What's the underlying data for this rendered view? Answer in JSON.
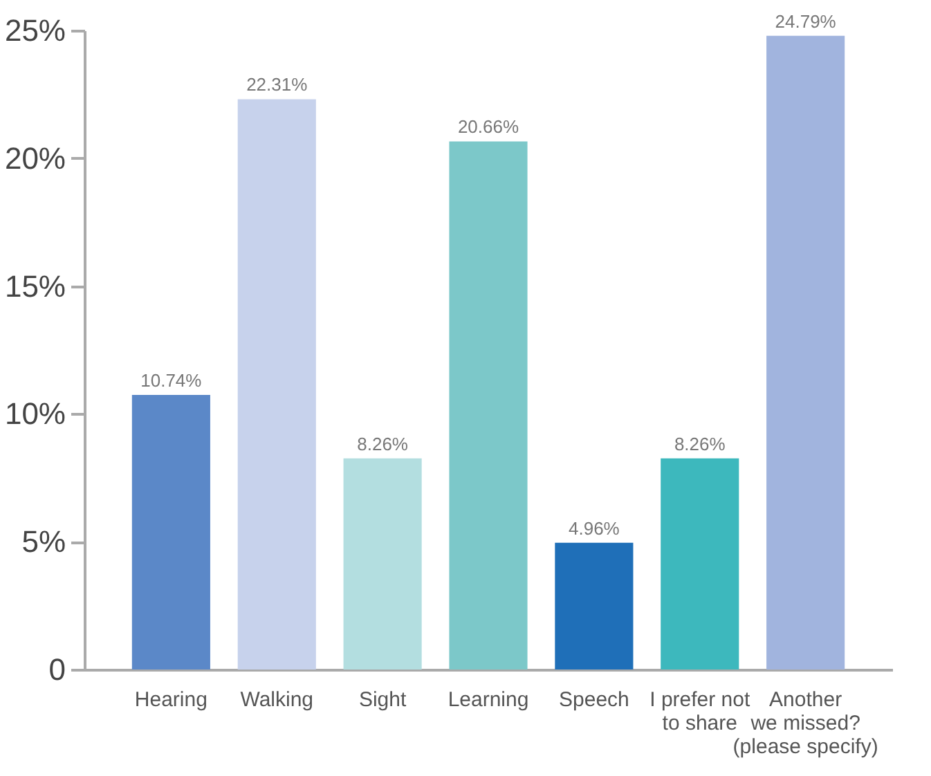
{
  "chart_data": {
    "type": "bar",
    "categories": [
      "Hearing",
      "Walking",
      "Sight",
      "Learning",
      "Speech",
      "I prefer not\nto share",
      "Another\nwe missed?\n(please specify)"
    ],
    "values": [
      10.74,
      22.31,
      8.26,
      20.66,
      4.96,
      8.26,
      24.79
    ],
    "colors": [
      "#5b88c8",
      "#c7d2ec",
      "#b3dee0",
      "#7cc8c9",
      "#1f6fb8",
      "#3db8bd",
      "#a1b4de"
    ],
    "value_labels": [
      "10.74%",
      "22.31%",
      "8.26%",
      "20.66%",
      "4.96%",
      "8.26%",
      "24.79%"
    ],
    "ylim": [
      0,
      25
    ],
    "yticks": [
      0,
      {
        "value": 5,
        "label": "5%"
      },
      {
        "value": 10,
        "label": "10%"
      },
      {
        "value": 15,
        "label": "15%"
      },
      {
        "value": 20,
        "label": "20%"
      },
      {
        "value": 25,
        "label": "25%"
      }
    ],
    "grid": false,
    "legend": false
  }
}
